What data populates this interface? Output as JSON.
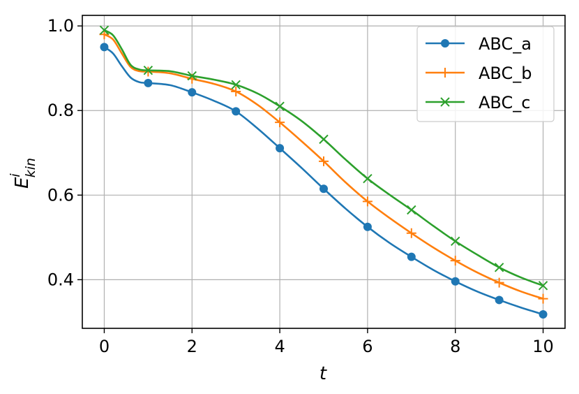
{
  "chart_data": {
    "type": "line",
    "title": "",
    "xlabel": "t",
    "ylabel": {
      "base": "E",
      "sup": "i",
      "sub": "kin"
    },
    "xlim": [
      -0.5,
      10.5
    ],
    "ylim": [
      0.285,
      1.025
    ],
    "xticks": [
      0,
      2,
      4,
      6,
      8,
      10
    ],
    "yticks": [
      0.4,
      0.6,
      0.8,
      1.0
    ],
    "xtick_labels": [
      "0",
      "2",
      "4",
      "6",
      "8",
      "10"
    ],
    "ytick_labels": [
      "0.4",
      "0.6",
      "0.8",
      "1.0"
    ],
    "grid": true,
    "legend_position": "top-right",
    "x": [
      0,
      1,
      2,
      3,
      4,
      5,
      6,
      7,
      8,
      9,
      10
    ],
    "series": [
      {
        "name": "ABC_a",
        "color": "#1f77b4",
        "marker": "circle",
        "values": [
          0.95,
          0.865,
          0.843,
          0.798,
          0.711,
          0.615,
          0.525,
          0.454,
          0.396,
          0.352,
          0.318
        ],
        "curve": [
          [
            0,
            0.95
          ],
          [
            0.2,
            0.935
          ],
          [
            0.4,
            0.905
          ],
          [
            0.6,
            0.878
          ],
          [
            0.8,
            0.867
          ],
          [
            1,
            0.865
          ],
          [
            1.5,
            0.86
          ],
          [
            2,
            0.843
          ],
          [
            2.5,
            0.823
          ],
          [
            3,
            0.798
          ],
          [
            3.5,
            0.757
          ],
          [
            4,
            0.711
          ],
          [
            4.5,
            0.664
          ],
          [
            5,
            0.615
          ],
          [
            5.5,
            0.568
          ],
          [
            6,
            0.525
          ],
          [
            6.5,
            0.487
          ],
          [
            7,
            0.454
          ],
          [
            7.5,
            0.423
          ],
          [
            8,
            0.396
          ],
          [
            8.5,
            0.372
          ],
          [
            9,
            0.352
          ],
          [
            9.5,
            0.334
          ],
          [
            10,
            0.318
          ]
        ]
      },
      {
        "name": "ABC_b",
        "color": "#ff7f0e",
        "marker": "plus",
        "values": [
          0.98,
          0.892,
          0.875,
          0.845,
          0.772,
          0.68,
          0.585,
          0.51,
          0.445,
          0.393,
          0.355
        ],
        "curve": [
          [
            0,
            0.98
          ],
          [
            0.2,
            0.968
          ],
          [
            0.4,
            0.935
          ],
          [
            0.6,
            0.903
          ],
          [
            0.8,
            0.893
          ],
          [
            1,
            0.892
          ],
          [
            1.5,
            0.888
          ],
          [
            2,
            0.875
          ],
          [
            2.5,
            0.863
          ],
          [
            3,
            0.845
          ],
          [
            3.5,
            0.813
          ],
          [
            4,
            0.772
          ],
          [
            4.5,
            0.727
          ],
          [
            5,
            0.68
          ],
          [
            5.5,
            0.63
          ],
          [
            6,
            0.585
          ],
          [
            6.5,
            0.546
          ],
          [
            7,
            0.51
          ],
          [
            7.5,
            0.476
          ],
          [
            8,
            0.445
          ],
          [
            8.5,
            0.417
          ],
          [
            9,
            0.393
          ],
          [
            9.5,
            0.372
          ],
          [
            10,
            0.355
          ]
        ]
      },
      {
        "name": "ABC_c",
        "color": "#2ca02c",
        "marker": "x",
        "values": [
          0.99,
          0.895,
          0.882,
          0.861,
          0.81,
          0.732,
          0.639,
          0.565,
          0.491,
          0.429,
          0.386
        ],
        "curve": [
          [
            0,
            0.99
          ],
          [
            0.2,
            0.978
          ],
          [
            0.4,
            0.945
          ],
          [
            0.6,
            0.908
          ],
          [
            0.8,
            0.897
          ],
          [
            1,
            0.895
          ],
          [
            1.5,
            0.893
          ],
          [
            2,
            0.882
          ],
          [
            2.5,
            0.873
          ],
          [
            3,
            0.861
          ],
          [
            3.5,
            0.84
          ],
          [
            4,
            0.81
          ],
          [
            4.5,
            0.775
          ],
          [
            5,
            0.732
          ],
          [
            5.5,
            0.684
          ],
          [
            6,
            0.639
          ],
          [
            6.5,
            0.601
          ],
          [
            7,
            0.565
          ],
          [
            7.5,
            0.527
          ],
          [
            8,
            0.491
          ],
          [
            8.5,
            0.459
          ],
          [
            9,
            0.429
          ],
          [
            9.5,
            0.405
          ],
          [
            10,
            0.386
          ]
        ]
      }
    ]
  }
}
